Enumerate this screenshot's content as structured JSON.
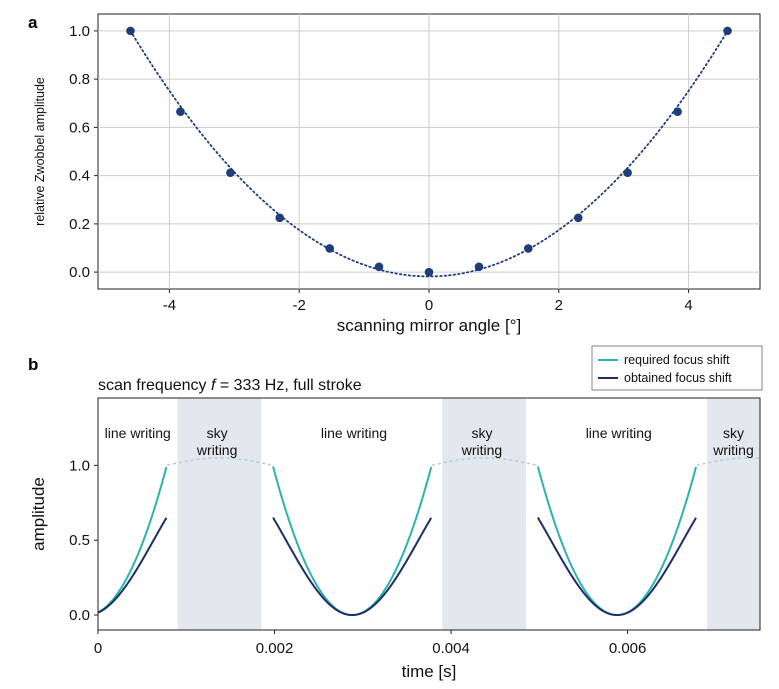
{
  "colors": {
    "marker": "#1f3d7a",
    "dotted_fit": "#1f3d7a",
    "required": "#2ab3b0",
    "obtained": "#1c2f66",
    "sky_shading": "#e3e8ef",
    "grid": "#cccccc"
  },
  "chart_data": [
    {
      "panel": "a",
      "type": "scatter",
      "xlabel": "scanning mirror angle [°]",
      "ylabel": "relative Zwobbel amplitude",
      "xlim": [
        -5.1,
        5.1
      ],
      "ylim": [
        -0.07,
        1.07
      ],
      "xticks": [
        -4,
        -2,
        0,
        2,
        4
      ],
      "xtick_labels": [
        "-4",
        "-2",
        "0",
        "2",
        "4"
      ],
      "yticks": [
        0.0,
        0.2,
        0.4,
        0.6,
        0.8,
        1.0
      ],
      "ytick_labels": [
        "0.0",
        "0.2",
        "0.4",
        "0.6",
        "0.8",
        "1.0"
      ],
      "grid": true,
      "points": {
        "x": [
          -4.6,
          -3.83,
          -3.06,
          -2.3,
          -1.53,
          -0.77,
          0,
          0.77,
          1.53,
          2.3,
          3.06,
          3.83,
          4.6
        ],
        "y": [
          1.0,
          0.665,
          0.412,
          0.225,
          0.098,
          0.022,
          0.0,
          0.022,
          0.098,
          0.225,
          0.412,
          0.665,
          1.0
        ]
      },
      "fit": {
        "style": "dotted",
        "a": 0.0481,
        "c": -0.018
      }
    },
    {
      "panel": "b",
      "type": "line",
      "title_prefix": "scan frequency ",
      "title_var": "f",
      "title_suffix": " = 333 Hz, full stroke",
      "xlabel": "time [s]",
      "ylabel": "amplitude",
      "xlim": [
        0,
        0.0075
      ],
      "ylim": [
        -0.1,
        1.45
      ],
      "xticks": [
        0,
        0.002,
        0.004,
        0.006
      ],
      "xtick_labels": [
        "0",
        "0.002",
        "0.004",
        "0.006"
      ],
      "yticks": [
        0.0,
        0.5,
        1.0
      ],
      "ytick_labels": [
        "0.0",
        "0.5",
        "1.0"
      ],
      "grid": false,
      "legend_position": "top-right",
      "series": [
        {
          "name": "required focus shift",
          "model": "parabolic_segments"
        },
        {
          "name": "obtained focus shift",
          "model": "cosine"
        }
      ],
      "scan_period": 0.003,
      "line_phase_fraction": 0.6,
      "sky_regions": [
        [
          0.0009,
          0.00185
        ],
        [
          0.0039,
          0.00485
        ],
        [
          0.0069,
          0.0075
        ]
      ],
      "regions": [
        {
          "lines": [
            "line writing"
          ],
          "x": 0.00045
        },
        {
          "lines": [
            "sky",
            "writing"
          ],
          "x": 0.00135
        },
        {
          "lines": [
            "line writing"
          ],
          "x": 0.0029
        },
        {
          "lines": [
            "sky",
            "writing"
          ],
          "x": 0.00435
        },
        {
          "lines": [
            "line writing"
          ],
          "x": 0.0059
        },
        {
          "lines": [
            "sky",
            "writing"
          ],
          "x": 0.0072
        }
      ]
    }
  ]
}
